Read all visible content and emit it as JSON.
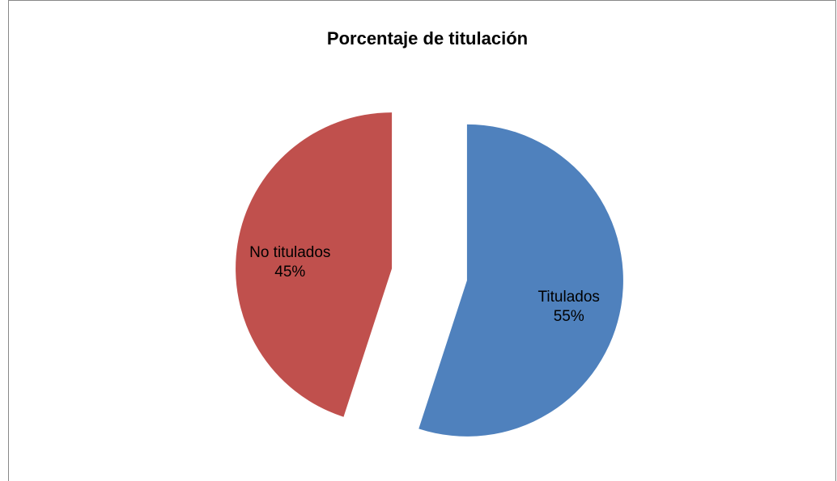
{
  "chart_data": {
    "type": "pie",
    "title": "Porcentaje de titulación",
    "categories": [
      "Titulados",
      "No titulados"
    ],
    "values": [
      55,
      45
    ],
    "value_labels": [
      "55%",
      "45%"
    ],
    "colors": [
      "#4f81bd",
      "#c0504d"
    ]
  }
}
